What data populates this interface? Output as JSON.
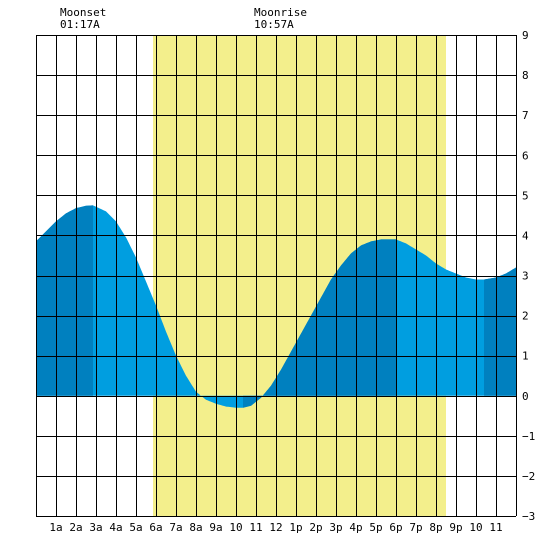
{
  "moon": {
    "moonset_label": "Moonset",
    "moonset_time": "01:17A",
    "moonrise_label": "Moonrise",
    "moonrise_time": "10:57A"
  },
  "colors": {
    "daylight": "#f3ef8c",
    "tide_light": "#009ee0",
    "tide_dark": "#0080bf",
    "grid": "#000000",
    "background": "#ffffff"
  },
  "chart_data": {
    "type": "area",
    "title": "",
    "xlabel": "",
    "ylabel": "",
    "xlim": [
      0,
      24
    ],
    "ylim": [
      -3,
      9
    ],
    "grid": true,
    "x_tick_labels": [
      "1a",
      "2a",
      "3a",
      "4a",
      "5a",
      "6a",
      "7a",
      "8a",
      "9a",
      "10",
      "11",
      "12",
      "1p",
      "2p",
      "3p",
      "4p",
      "5p",
      "6p",
      "7p",
      "8p",
      "9p",
      "10",
      "11"
    ],
    "x_tick_hours": [
      1,
      2,
      3,
      4,
      5,
      6,
      7,
      8,
      9,
      10,
      11,
      12,
      13,
      14,
      15,
      16,
      17,
      18,
      19,
      20,
      21,
      22,
      23
    ],
    "y_ticks": [
      9,
      8,
      7,
      6,
      5,
      4,
      3,
      2,
      1,
      0,
      -1,
      -2,
      -3
    ],
    "daylight": [
      5.85,
      20.5
    ],
    "tide_extremes": [
      {
        "time": 2.85,
        "height": 4.75,
        "type": "high"
      },
      {
        "time": 10.35,
        "height": -0.3,
        "type": "low"
      },
      {
        "time": 18.0,
        "height": 3.9,
        "type": "high"
      },
      {
        "time": 22.4,
        "height": 2.9,
        "type": "low"
      }
    ],
    "series": [
      {
        "x": [
          0,
          0.5,
          1,
          1.5,
          2,
          2.5,
          2.85,
          3.5,
          4,
          4.5,
          5,
          5.5,
          6,
          6.5,
          7,
          7.5,
          8,
          8.5,
          9,
          9.5,
          10,
          10.35,
          10.75,
          11.25,
          11.75,
          12.25,
          12.75,
          13.25,
          13.75,
          14.25,
          14.75,
          15.25,
          15.75,
          16.25,
          16.75,
          17.25,
          17.75,
          18.0,
          18.5,
          19,
          19.5,
          20,
          20.5,
          21,
          21.5,
          22,
          22.4,
          23,
          23.5,
          24
        ],
        "y": [
          3.85,
          4.1,
          4.35,
          4.55,
          4.68,
          4.74,
          4.75,
          4.6,
          4.35,
          3.95,
          3.45,
          2.85,
          2.25,
          1.6,
          1.0,
          0.5,
          0.1,
          -0.1,
          -0.2,
          -0.27,
          -0.3,
          -0.3,
          -0.25,
          -0.05,
          0.25,
          0.65,
          1.1,
          1.55,
          2.0,
          2.45,
          2.9,
          3.25,
          3.55,
          3.75,
          3.85,
          3.9,
          3.9,
          3.9,
          3.8,
          3.65,
          3.5,
          3.3,
          3.15,
          3.05,
          2.95,
          2.9,
          2.9,
          2.95,
          3.05,
          3.2
        ]
      }
    ],
    "dark_intervals": [
      [
        0,
        2.85
      ],
      [
        10.35,
        18.0
      ],
      [
        22.4,
        24
      ]
    ]
  }
}
